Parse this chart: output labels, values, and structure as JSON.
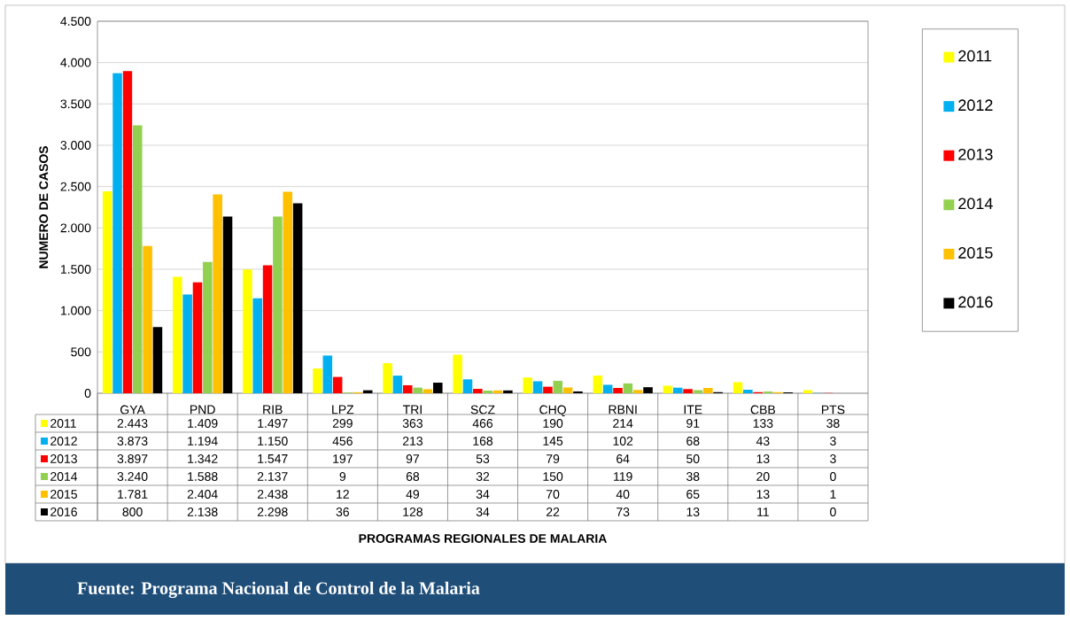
{
  "chart_data": {
    "type": "bar",
    "ylabel": "NUMERO DE CASOS",
    "categories": [
      "GYA",
      "PND",
      "RIB",
      "LPZ",
      "TRI",
      "SCZ",
      "CHQ",
      "RBNI",
      "ITE",
      "CBB",
      "PTS"
    ],
    "series": [
      {
        "name": "2011",
        "color": "#ffff00",
        "values": [
          2443,
          1409,
          1497,
          299,
          363,
          466,
          190,
          214,
          91,
          133,
          38
        ],
        "value_labels": [
          "2.443",
          "1.409",
          "1.497",
          "299",
          "363",
          "466",
          "190",
          "214",
          "91",
          "133",
          "38"
        ]
      },
      {
        "name": "2012",
        "color": "#00b0f0",
        "values": [
          3873,
          1194,
          1150,
          456,
          213,
          168,
          145,
          102,
          68,
          43,
          3
        ],
        "value_labels": [
          "3.873",
          "1.194",
          "1.150",
          "456",
          "213",
          "168",
          "145",
          "102",
          "68",
          "43",
          "3"
        ]
      },
      {
        "name": "2013",
        "color": "#ff0000",
        "values": [
          3897,
          1342,
          1547,
          197,
          97,
          53,
          79,
          64,
          50,
          13,
          3
        ],
        "value_labels": [
          "3.897",
          "1.342",
          "1.547",
          "197",
          "97",
          "53",
          "79",
          "64",
          "50",
          "13",
          "3"
        ]
      },
      {
        "name": "2014",
        "color": "#92d050",
        "values": [
          3240,
          1588,
          2137,
          9,
          68,
          32,
          150,
          119,
          38,
          20,
          0
        ],
        "value_labels": [
          "3.240",
          "1.588",
          "2.137",
          "9",
          "68",
          "32",
          "150",
          "119",
          "38",
          "20",
          "0"
        ]
      },
      {
        "name": "2015",
        "color": "#ffc000",
        "values": [
          1781,
          2404,
          2438,
          12,
          49,
          34,
          70,
          40,
          65,
          13,
          1
        ],
        "value_labels": [
          "1.781",
          "2.404",
          "2.438",
          "12",
          "49",
          "34",
          "70",
          "40",
          "65",
          "13",
          "1"
        ]
      },
      {
        "name": "2016",
        "color": "#000000",
        "values": [
          800,
          2138,
          2298,
          36,
          128,
          34,
          22,
          73,
          13,
          11,
          0
        ],
        "value_labels": [
          "800",
          "2.138",
          "2.298",
          "36",
          "128",
          "34",
          "22",
          "73",
          "13",
          "11",
          "0"
        ]
      }
    ],
    "ylim": [
      0,
      4500
    ],
    "yticks": [
      {
        "value": 0,
        "label": "0"
      },
      {
        "value": 500,
        "label": "500"
      },
      {
        "value": 1000,
        "label": "1.000"
      },
      {
        "value": 1500,
        "label": "1.500"
      },
      {
        "value": 2000,
        "label": "2.000"
      },
      {
        "value": 2500,
        "label": "2.500"
      },
      {
        "value": 3000,
        "label": "3.000"
      },
      {
        "value": 3500,
        "label": "3.500"
      },
      {
        "value": 4000,
        "label": "4.000"
      },
      {
        "value": 4500,
        "label": "4.500"
      }
    ],
    "grid": "y",
    "legend": "right",
    "annotations": [
      "PROGRAMAS REGIONALES DE MALARIA",
      "Fuente: Programa Nacional de Control de la Malaria"
    ]
  }
}
